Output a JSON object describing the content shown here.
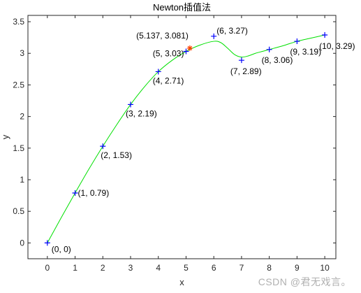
{
  "chart_data": {
    "type": "line",
    "title": "Newton插值法",
    "xlabel": "x",
    "ylabel": "y",
    "xlim": [
      -0.7,
      10.4
    ],
    "ylim": [
      -0.25,
      3.6
    ],
    "xticks": [
      0,
      1,
      2,
      3,
      4,
      5,
      6,
      7,
      8,
      9,
      10
    ],
    "xtick_labels": [
      "0",
      "1",
      "2",
      "3",
      "4",
      "5",
      "6",
      "7",
      "8",
      "9",
      "10"
    ],
    "yticks": [
      0,
      0.5,
      1,
      1.5,
      2,
      2.5,
      3,
      3.5
    ],
    "ytick_labels": [
      "0",
      "0.5",
      "1",
      "1.5",
      "2",
      "2.5",
      "3",
      "3.5"
    ],
    "grid": false,
    "colors": {
      "curve": "#00e000",
      "points": "#0000ff",
      "query": "#ff4000",
      "axes": "#262626"
    },
    "series": [
      {
        "marker": "+",
        "points": [
          {
            "x": 0,
            "y": 0,
            "label": "(0, 0)"
          },
          {
            "x": 1,
            "y": 0.79,
            "label": "(1, 0.79)"
          },
          {
            "x": 2,
            "y": 1.53,
            "label": "(2, 1.53)"
          },
          {
            "x": 3,
            "y": 2.19,
            "label": "(3, 2.19)"
          },
          {
            "x": 4,
            "y": 2.71,
            "label": "(4, 2.71)"
          },
          {
            "x": 5,
            "y": 3.03,
            "label": "(5, 3.03)"
          },
          {
            "x": 6,
            "y": 3.27,
            "label": "(6, 3.27)"
          },
          {
            "x": 7,
            "y": 2.89,
            "label": "(7, 2.89)"
          },
          {
            "x": 8,
            "y": 3.06,
            "label": "(8, 3.06)"
          },
          {
            "x": 9,
            "y": 3.19,
            "label": "(9, 3.19)"
          },
          {
            "x": 10,
            "y": 3.29,
            "label": "(10, 3.29)"
          }
        ]
      },
      {
        "marker": "*",
        "points": [
          {
            "x": 5.137,
            "y": 3.081,
            "label": "(5.137, 3.081)"
          }
        ]
      }
    ],
    "curve": {
      "x": [
        0,
        0.5,
        1,
        1.5,
        2,
        2.5,
        3,
        3.5,
        4,
        4.5,
        5,
        5.5,
        6,
        6.25,
        6.5,
        6.75,
        7,
        7.25,
        7.5,
        7.75,
        8,
        8.5,
        9,
        9.5,
        10
      ],
      "y": [
        0,
        0.4,
        0.79,
        1.17,
        1.53,
        1.87,
        2.19,
        2.47,
        2.71,
        2.89,
        3.03,
        3.13,
        3.19,
        3.17,
        3.08,
        2.98,
        2.94,
        2.96,
        3.0,
        3.03,
        3.06,
        3.12,
        3.19,
        3.24,
        3.29
      ]
    }
  },
  "watermark": "CSDN @君无戏言。"
}
